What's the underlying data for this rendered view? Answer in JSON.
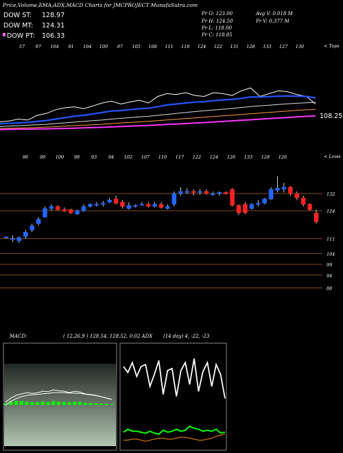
{
  "title": "Price,Volume,EMA,ADX,MACD Charts for JMCPROJECT MunafaSutra.com",
  "legend": [
    {
      "label": "DOW ST:",
      "value": "128.97",
      "color": "#ffffff"
    },
    {
      "label": "DOW MT:",
      "value": "124.31",
      "color": "#ffffff"
    },
    {
      "label": "DOW PT:",
      "value": "106.33",
      "color": "#ff66ff"
    }
  ],
  "stats": {
    "pr_o": "Pr  O: 123.00",
    "pr_h": "Pr  H: 124.50",
    "pr_l": "Pr  L: 118.00",
    "pr_c": "Pr  C: 118.85",
    "avg_v": "Avg V: 0.018  M",
    "pr_v": "Pr  V: 0.377 M"
  },
  "top_tag": "< Tops",
  "lows_tag": "< Lows",
  "ema_value_label": "108.25",
  "macd_title": "MACD:",
  "macd_params": "( 12,26,9 ) 128.54,  128.52, 0.02 ADX",
  "adx_params": "(14  day) 4, -22, -23",
  "chart_data": [
    {
      "type": "line",
      "name": "ema-panel",
      "tops_labels": [
        "57",
        "97",
        "104",
        "91",
        "104",
        "100",
        "97",
        "105",
        "108",
        "111",
        "118",
        "124",
        "122",
        "131",
        "128",
        "133",
        "127",
        "130"
      ],
      "series": [
        {
          "name": "price",
          "color": "#ffffff",
          "values": [
            101,
            102,
            104,
            103,
            108,
            110,
            114,
            116,
            117,
            115,
            118,
            121,
            123,
            120,
            122,
            124,
            121,
            128,
            131,
            130,
            132,
            129,
            128,
            132,
            131,
            129,
            134,
            137,
            128,
            131,
            134,
            133,
            130,
            128,
            120
          ]
        },
        {
          "name": "ema-fast",
          "color": "#2255ff",
          "values": [
            99,
            99.5,
            100,
            100.5,
            101.5,
            102.5,
            104,
            105.5,
            107,
            108,
            109.5,
            111,
            112.5,
            113,
            114,
            115,
            115.5,
            117,
            119,
            120,
            121,
            122,
            122.5,
            123.5,
            124.3,
            124.8,
            126,
            127.5,
            127.4,
            127.8,
            128.3,
            128.5,
            128.3,
            128,
            126.5
          ]
        },
        {
          "name": "ema-mid",
          "color": "#dddddd",
          "values": [
            96,
            96.5,
            97,
            97.5,
            98,
            98.5,
            99.3,
            100,
            100.8,
            101.5,
            102.3,
            103,
            104,
            104.8,
            105.5,
            106.3,
            107,
            108,
            109,
            110,
            111,
            112,
            112.8,
            113.6,
            114.5,
            115.3,
            116.3,
            117.3,
            118,
            118.7,
            119.5,
            120.2,
            120.8,
            121.3,
            121.6
          ]
        },
        {
          "name": "ema-slow",
          "color": "#ff9944",
          "values": [
            94,
            94.2,
            94.5,
            94.8,
            95.2,
            95.6,
            96,
            96.5,
            97,
            97.5,
            98,
            98.5,
            99.2,
            99.8,
            100.4,
            101,
            101.7,
            102.4,
            103.1,
            103.8,
            104.5,
            105.2,
            106,
            106.7,
            107.4,
            108.1,
            108.9,
            109.7,
            110.4,
            111.1,
            111.8,
            112.5,
            113.2,
            113.8,
            114.3
          ]
        },
        {
          "name": "ema-long",
          "color": "#ff33ff",
          "values": [
            93,
            93.1,
            93.2,
            93.3,
            93.5,
            93.7,
            93.9,
            94.1,
            94.4,
            94.7,
            95,
            95.3,
            95.7,
            96.1,
            96.5,
            96.9,
            97.3,
            97.8,
            98.3,
            98.8,
            99.3,
            99.8,
            100.3,
            100.9,
            101.5,
            102.1,
            102.7,
            103.3,
            103.9,
            104.5,
            105.1,
            105.7,
            106.3,
            106.9,
            107.5
          ]
        }
      ]
    },
    {
      "type": "candlestick",
      "name": "price-panel",
      "lows_labels": [
        "96",
        "99",
        "100",
        "98",
        "93",
        "94",
        "102",
        "107",
        "110",
        "117",
        "122",
        "124",
        "126",
        "133",
        "128",
        "126"
      ],
      "y_ticks": [
        132,
        124,
        111,
        104,
        99,
        94,
        88
      ],
      "candles": [
        {
          "o": 111.5,
          "h": 112,
          "l": 111,
          "c": 111.8
        },
        {
          "o": 111,
          "h": 112.5,
          "l": 109.5,
          "c": 111
        },
        {
          "o": 110,
          "h": 112,
          "l": 109,
          "c": 111.5
        },
        {
          "o": 112,
          "h": 115,
          "l": 111,
          "c": 114
        },
        {
          "o": 115,
          "h": 118,
          "l": 114,
          "c": 117
        },
        {
          "o": 118,
          "h": 121,
          "l": 117,
          "c": 120
        },
        {
          "o": 121,
          "h": 126,
          "l": 121,
          "c": 125
        },
        {
          "o": 125,
          "h": 127,
          "l": 124,
          "c": 126
        },
        {
          "o": 126,
          "h": 126.5,
          "l": 124,
          "c": 124.5
        },
        {
          "o": 124.5,
          "h": 125.5,
          "l": 123.5,
          "c": 124
        },
        {
          "o": 124.5,
          "h": 125,
          "l": 122.5,
          "c": 123
        },
        {
          "o": 122.5,
          "h": 124.5,
          "l": 122,
          "c": 124
        },
        {
          "o": 124,
          "h": 127,
          "l": 123.5,
          "c": 126
        },
        {
          "o": 126,
          "h": 127.5,
          "l": 125.5,
          "c": 127
        },
        {
          "o": 127,
          "h": 128,
          "l": 126,
          "c": 127
        },
        {
          "o": 127,
          "h": 128.5,
          "l": 126,
          "c": 127.5
        },
        {
          "o": 128,
          "h": 130,
          "l": 127.5,
          "c": 129
        },
        {
          "o": 129.5,
          "h": 131,
          "l": 127,
          "c": 127.5
        },
        {
          "o": 128,
          "h": 129,
          "l": 125,
          "c": 126
        },
        {
          "o": 125,
          "h": 128,
          "l": 124.5,
          "c": 126.5
        },
        {
          "o": 126,
          "h": 127,
          "l": 125.5,
          "c": 126.5
        },
        {
          "o": 127,
          "h": 128,
          "l": 126.5,
          "c": 127
        },
        {
          "o": 127,
          "h": 128,
          "l": 125.5,
          "c": 126
        },
        {
          "o": 126,
          "h": 128,
          "l": 125.5,
          "c": 127
        },
        {
          "o": 127,
          "h": 128,
          "l": 125,
          "c": 125.5
        },
        {
          "o": 125,
          "h": 127,
          "l": 124.5,
          "c": 126
        },
        {
          "o": 127,
          "h": 133,
          "l": 126,
          "c": 132
        },
        {
          "o": 132,
          "h": 135,
          "l": 131,
          "c": 133
        },
        {
          "o": 133,
          "h": 134.5,
          "l": 132,
          "c": 133
        },
        {
          "o": 133,
          "h": 134,
          "l": 131,
          "c": 132.5
        },
        {
          "o": 132.5,
          "h": 134,
          "l": 131.5,
          "c": 133
        },
        {
          "o": 133,
          "h": 134,
          "l": 131.5,
          "c": 132
        },
        {
          "o": 132,
          "h": 133,
          "l": 131,
          "c": 132
        },
        {
          "o": 132,
          "h": 133,
          "l": 131,
          "c": 132.5
        },
        {
          "o": 132.5,
          "h": 133,
          "l": 131.5,
          "c": 132
        },
        {
          "o": 134,
          "h": 134.5,
          "l": 126,
          "c": 126.5
        },
        {
          "o": 126.5,
          "h": 127,
          "l": 122,
          "c": 123
        },
        {
          "o": 127,
          "h": 128,
          "l": 122.5,
          "c": 123
        },
        {
          "o": 125,
          "h": 127.5,
          "l": 124.5,
          "c": 127
        },
        {
          "o": 127,
          "h": 129,
          "l": 126,
          "c": 127.5
        },
        {
          "o": 127.5,
          "h": 130,
          "l": 127,
          "c": 129.5
        },
        {
          "o": 129.5,
          "h": 135,
          "l": 129,
          "c": 134
        },
        {
          "o": 133.5,
          "h": 140,
          "l": 132.5,
          "c": 134.5
        },
        {
          "o": 134,
          "h": 137,
          "l": 132.5,
          "c": 135
        },
        {
          "o": 135,
          "h": 135.5,
          "l": 131,
          "c": 132
        },
        {
          "o": 132,
          "h": 133,
          "l": 129,
          "c": 130
        },
        {
          "o": 130,
          "h": 131,
          "l": 126,
          "c": 127
        },
        {
          "o": 127,
          "h": 127.5,
          "l": 124,
          "c": 124.5
        },
        {
          "o": 123,
          "h": 124.5,
          "l": 118,
          "c": 118.85
        }
      ]
    },
    {
      "type": "line",
      "name": "macd-panel",
      "series": [
        {
          "name": "macd",
          "color": "#ffffff",
          "values": [
            0.1,
            0.25,
            0.35,
            0.4,
            0.45,
            0.42,
            0.44,
            0.5,
            0.48,
            0.55,
            0.52,
            0.5,
            0.45,
            0.5,
            0.47,
            0.4,
            0.38,
            0.35,
            0.3,
            0.25,
            0.2
          ]
        },
        {
          "name": "signal",
          "color": "#ffffff",
          "values": [
            0.05,
            0.18,
            0.28,
            0.35,
            0.4,
            0.42,
            0.43,
            0.46,
            0.47,
            0.5,
            0.5,
            0.5,
            0.48,
            0.48,
            0.47,
            0.44,
            0.42,
            0.39,
            0.35,
            0.3,
            0.25
          ]
        },
        {
          "name": "histogram",
          "color": "#00ff00",
          "values": [
            0.05,
            0.12,
            0.15,
            0.14,
            0.12,
            0.1,
            0.1,
            0.12,
            0.1,
            0.14,
            0.12,
            0.11,
            0.1,
            0.12,
            0.11,
            0.08,
            0.07,
            0.06,
            0.05,
            0.04,
            0.03
          ]
        }
      ]
    },
    {
      "type": "line",
      "name": "adx-panel",
      "series": [
        {
          "name": "adx",
          "color": "#ffffff",
          "values": [
            80,
            74,
            84,
            70,
            80,
            82,
            60,
            72,
            86,
            52,
            76,
            78,
            50,
            76,
            84,
            62,
            88,
            55,
            75,
            84,
            60,
            82,
            72,
            48
          ]
        },
        {
          "name": "plus-di",
          "color": "#00ff00",
          "values": [
            14,
            17,
            15,
            15,
            14,
            13,
            15,
            13,
            12,
            16,
            14,
            15,
            17,
            15,
            16,
            20,
            18,
            17,
            15,
            16,
            15,
            17,
            13,
            14
          ]
        },
        {
          "name": "minus-di",
          "color": "#ff8800",
          "values": [
            6,
            6,
            7,
            7,
            6,
            5,
            6,
            7,
            8,
            8,
            7,
            7,
            8,
            9,
            9,
            8,
            7,
            6,
            6,
            7,
            8,
            10,
            11,
            12
          ]
        }
      ]
    }
  ]
}
